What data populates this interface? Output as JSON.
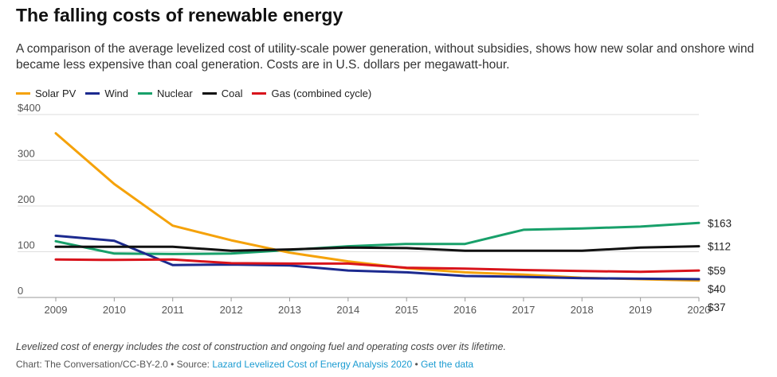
{
  "header": {
    "title": "The falling costs of renewable energy",
    "subtitle": "A comparison of the average levelized cost of utility-scale power generation, without subsidies, shows how new solar and onshore wind became less expensive than coal generation. Costs are in U.S. dollars per megawatt-hour."
  },
  "footer": {
    "note": "Levelized cost of energy includes the cost of construction and ongoing fuel and operating costs over its lifetime.",
    "chart_credit": "Chart: The Conversation/CC-BY-2.0",
    "separator1": " • Source: ",
    "source_link": "Lazard Levelized Cost of Energy Analysis 2020",
    "separator2": " • ",
    "data_link": "Get the data"
  },
  "chart_data": {
    "type": "line",
    "x": [
      "2009",
      "2010",
      "2011",
      "2012",
      "2013",
      "2014",
      "2015",
      "2016",
      "2017",
      "2018",
      "2019",
      "2020"
    ],
    "ylim": [
      0,
      400
    ],
    "yticks": [
      "$400",
      "300",
      "200",
      "100",
      "0"
    ],
    "grid": true,
    "legend_position": "top-left",
    "series": [
      {
        "name": "Solar PV",
        "color": "#f5a20a",
        "values": [
          359,
          248,
          157,
          125,
          98,
          79,
          64,
          55,
          50,
          43,
          40,
          37
        ],
        "end_label": "$37"
      },
      {
        "name": "Wind",
        "color": "#1c2a8f",
        "values": [
          135,
          124,
          71,
          72,
          70,
          59,
          55,
          47,
          45,
          42,
          41,
          40
        ],
        "end_label": "$40"
      },
      {
        "name": "Nuclear",
        "color": "#18a06a",
        "values": [
          123,
          96,
          95,
          96,
          104,
          112,
          117,
          117,
          148,
          151,
          155,
          163
        ],
        "end_label": "$163"
      },
      {
        "name": "Coal",
        "color": "#111111",
        "values": [
          111,
          111,
          111,
          102,
          105,
          109,
          108,
          102,
          102,
          102,
          109,
          112
        ],
        "end_label": "$112"
      },
      {
        "name": "Gas (combined cycle)",
        "color": "#d8141c",
        "values": [
          83,
          82,
          83,
          75,
          74,
          74,
          65,
          63,
          60,
          58,
          56,
          59
        ],
        "end_label": "$59"
      }
    ]
  }
}
